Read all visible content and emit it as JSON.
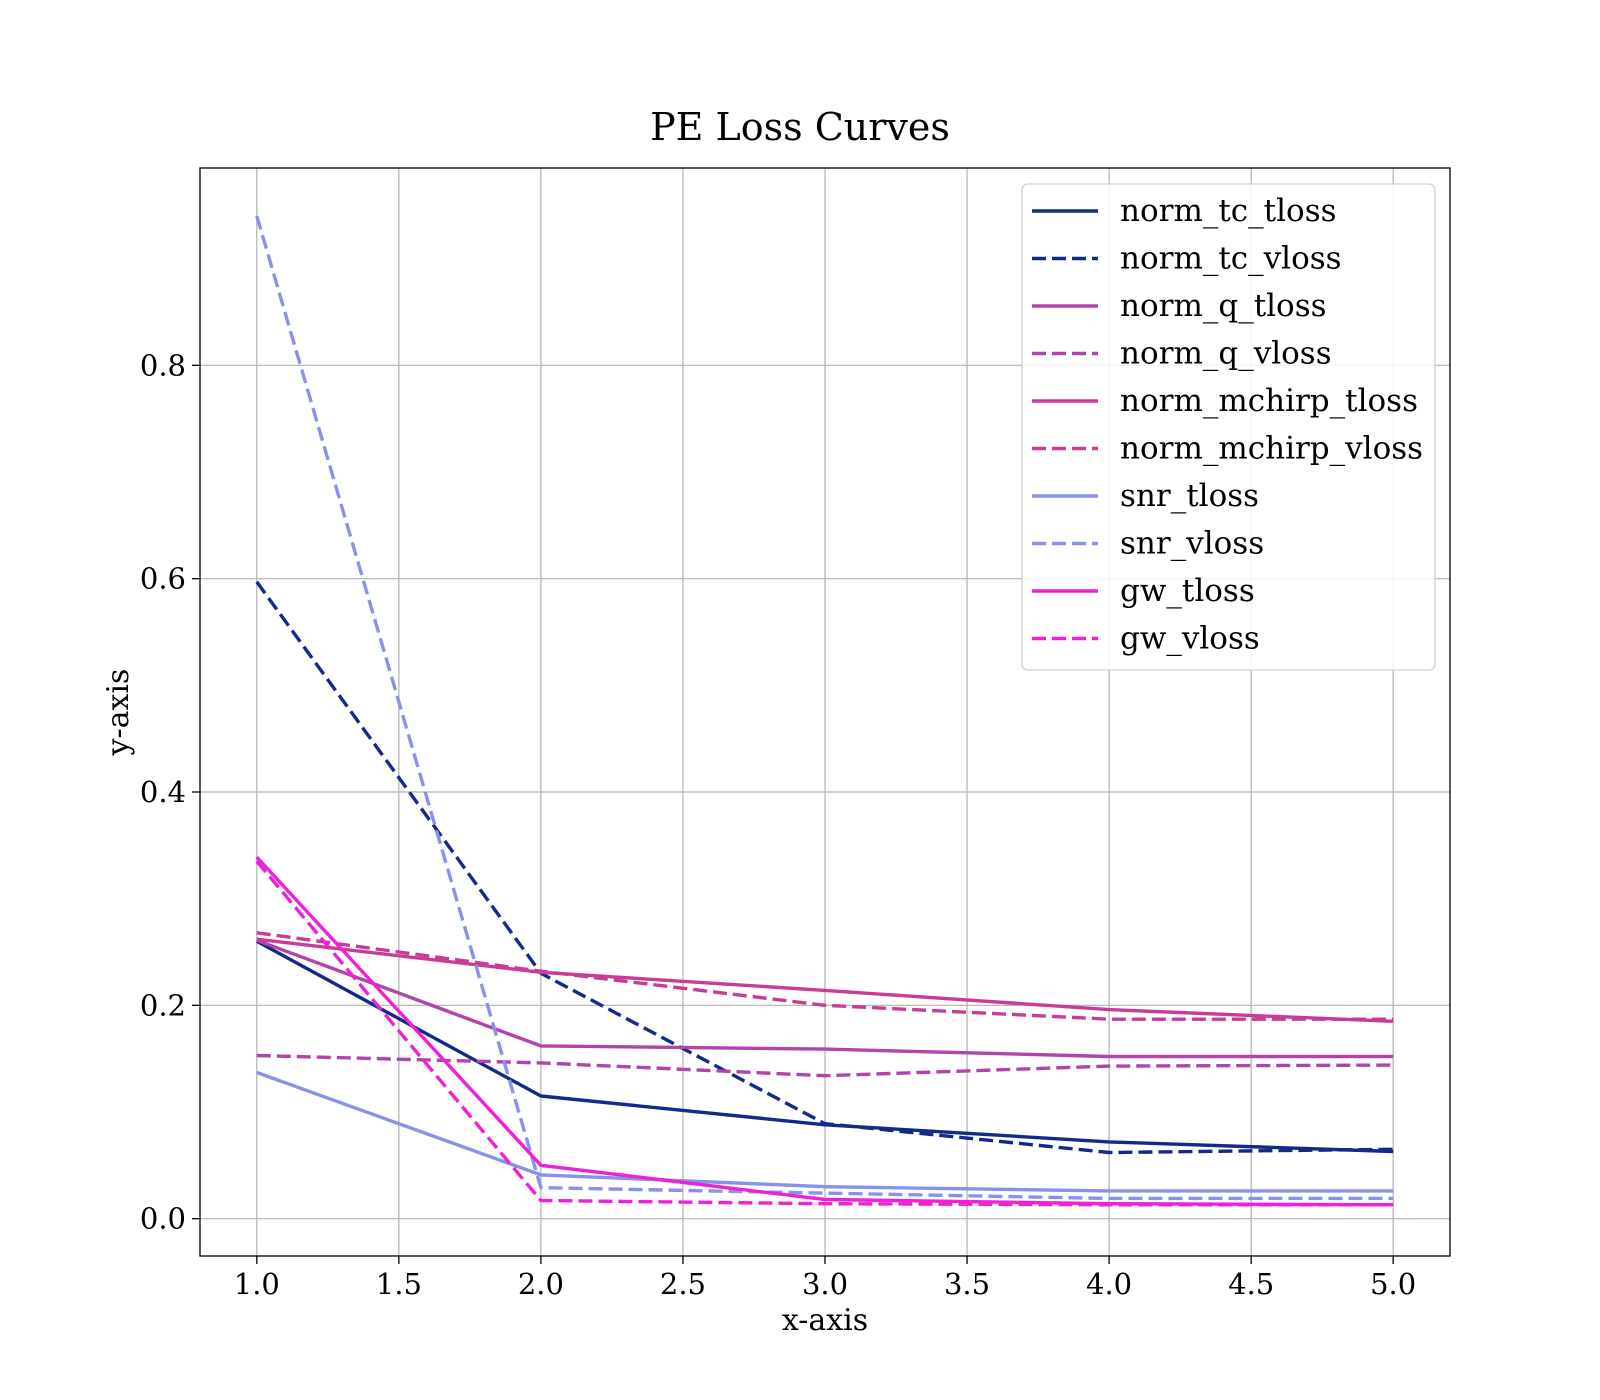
{
  "chart_data": {
    "type": "line",
    "title": "PE Loss Curves",
    "xlabel": "x-axis",
    "ylabel": "y-axis",
    "xlim": [
      0.8,
      5.2
    ],
    "ylim": [
      -0.035,
      0.985
    ],
    "xticks": [
      1.0,
      1.5,
      2.0,
      2.5,
      3.0,
      3.5,
      4.0,
      4.5,
      5.0
    ],
    "xtick_labels": [
      "1.0",
      "1.5",
      "2.0",
      "2.5",
      "3.0",
      "3.5",
      "4.0",
      "4.5",
      "5.0"
    ],
    "yticks": [
      0.0,
      0.2,
      0.4,
      0.6,
      0.8
    ],
    "ytick_labels": [
      "0.0",
      "0.2",
      "0.4",
      "0.6",
      "0.8"
    ],
    "grid": true,
    "legend_position": "top-right",
    "x": [
      1,
      2,
      3,
      4,
      5
    ],
    "series": [
      {
        "name": "norm_tc_tloss",
        "color": "#142a88",
        "style": "solid",
        "values": [
          0.26,
          0.115,
          0.088,
          0.072,
          0.063
        ]
      },
      {
        "name": "norm_tc_vloss",
        "color": "#142a88",
        "style": "dashed",
        "values": [
          0.597,
          0.23,
          0.089,
          0.062,
          0.065
        ]
      },
      {
        "name": "norm_q_tloss",
        "color": "#b044aa",
        "style": "solid",
        "values": [
          0.261,
          0.162,
          0.159,
          0.152,
          0.152
        ]
      },
      {
        "name": "norm_q_vloss",
        "color": "#b044aa",
        "style": "dashed",
        "values": [
          0.153,
          0.146,
          0.134,
          0.143,
          0.144
        ]
      },
      {
        "name": "norm_mchirp_tloss",
        "color": "#c83c98",
        "style": "solid",
        "values": [
          0.262,
          0.231,
          0.214,
          0.196,
          0.185
        ]
      },
      {
        "name": "norm_mchirp_vloss",
        "color": "#c83c98",
        "style": "dashed",
        "values": [
          0.268,
          0.232,
          0.2,
          0.187,
          0.187
        ]
      },
      {
        "name": "snr_tloss",
        "color": "#8892e8",
        "style": "solid",
        "values": [
          0.137,
          0.041,
          0.03,
          0.026,
          0.026
        ]
      },
      {
        "name": "snr_vloss",
        "color": "#8892e8",
        "style": "dashed",
        "values": [
          0.94,
          0.029,
          0.024,
          0.019,
          0.019
        ]
      },
      {
        "name": "gw_tloss",
        "color": "#f020d8",
        "style": "solid",
        "values": [
          0.339,
          0.05,
          0.018,
          0.014,
          0.013
        ]
      },
      {
        "name": "gw_vloss",
        "color": "#f020d8",
        "style": "dashed",
        "values": [
          0.335,
          0.017,
          0.014,
          0.013,
          0.013
        ]
      }
    ]
  }
}
